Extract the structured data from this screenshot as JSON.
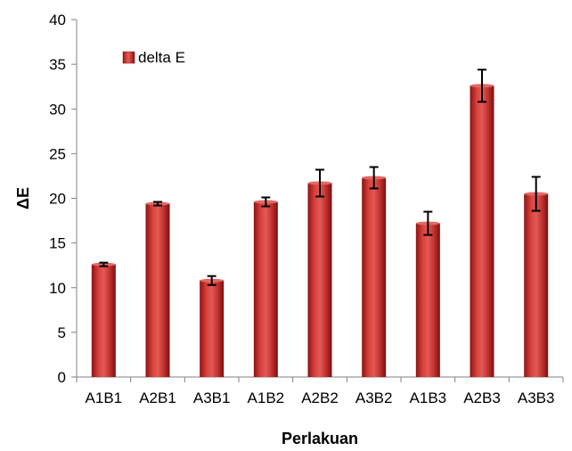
{
  "chart_data": {
    "type": "bar",
    "title": "",
    "xlabel": "Perlakuan",
    "ylabel": "ΔE",
    "ylim": [
      0,
      40
    ],
    "yticks": [
      0,
      5,
      10,
      15,
      20,
      25,
      30,
      35,
      40
    ],
    "categories": [
      "A1B1",
      "A2B1",
      "A3B1",
      "A1B2",
      "A2B2",
      "A3B2",
      "A1B3",
      "A2B3",
      "A3B3"
    ],
    "series": [
      {
        "name": "delta E",
        "values": [
          12.6,
          19.4,
          10.8,
          19.6,
          21.7,
          22.3,
          17.2,
          32.6,
          20.5
        ],
        "errors": [
          0.2,
          0.2,
          0.5,
          0.5,
          1.5,
          1.2,
          1.3,
          1.8,
          1.9
        ],
        "color": "#c0322f"
      }
    ],
    "legend": {
      "position": "top-left"
    },
    "grid": false
  }
}
